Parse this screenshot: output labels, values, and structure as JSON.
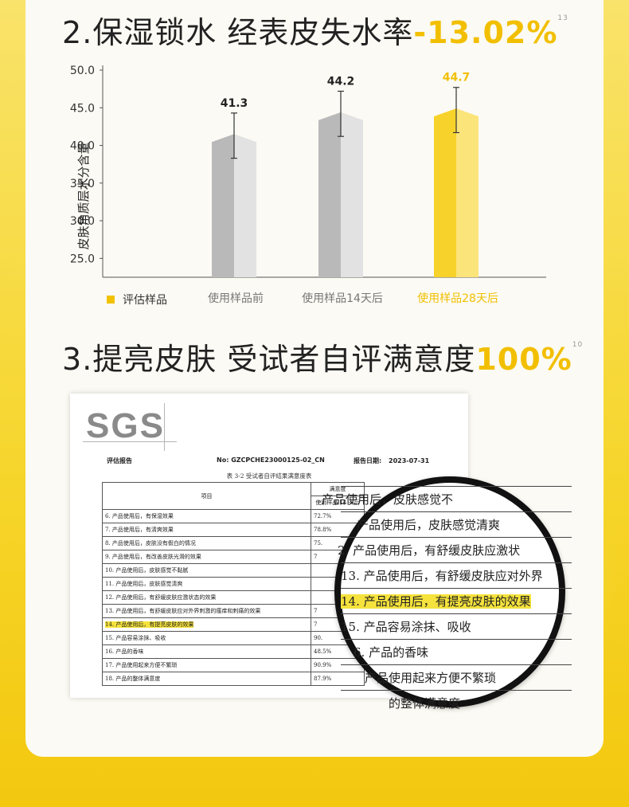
{
  "section2": {
    "number": "2",
    "title": ".保湿锁水 经表皮失水率",
    "highlight": "-13.02%",
    "ref": "13"
  },
  "section3": {
    "number": "3",
    "title": ".提亮皮肤 受试者自评满意度",
    "highlight": "100%",
    "ref": "10"
  },
  "colors": {
    "accent": "#f2bf00",
    "gray_bar": "#b9b9b9",
    "gray_bar_light": "#e2e2e2",
    "yellow_bar": "#f7d22a",
    "yellow_bar_light": "#fbe47a"
  },
  "chart_data": {
    "type": "bar",
    "ylabel": "皮肤角质层水分含量",
    "yticks": [
      "50.0",
      "45.0",
      "40.0",
      "35.0",
      "30.0",
      "25.0"
    ],
    "ylim": [
      22.5,
      50.0
    ],
    "legend": {
      "label": "评估样品",
      "position": "bottom-left"
    },
    "categories": [
      "使用样品前",
      "使用样品14天后",
      "使用样品28天后"
    ],
    "values": [
      41.3,
      44.2,
      44.7
    ],
    "value_labels": [
      "41.3",
      "44.2",
      "44.7"
    ],
    "error": [
      3.0,
      3.0,
      3.0
    ],
    "highlight_index": 2,
    "grid": false
  },
  "report": {
    "logo": "SGS",
    "label_report": "评估报告",
    "report_no_label": "No:",
    "report_no": "GZCPCHE23000125-02_CN",
    "date_label": "报告日期:",
    "date": "2023-07-31",
    "table_caption": "表 3-2 受试者自评结果满意度表",
    "col_item": "项目",
    "col_satisfaction": "满意度",
    "col_sub": "使用样品 14 天后",
    "rows": [
      {
        "item": "6. 产品使用后，有保湿效果",
        "value": "72.7%"
      },
      {
        "item": "7. 产品使用后，有清爽效果",
        "value": "78.8%"
      },
      {
        "item": "8. 产品使用后，皮肤没有假白的情况",
        "value": "75."
      },
      {
        "item": "9. 产品使用后，有改善皮肤光滑的效果",
        "value": "7"
      },
      {
        "item": "10. 产品使用后，皮肤感觉不黏腻",
        "value": ""
      },
      {
        "item": "11. 产品使用后，皮肤感觉清爽",
        "value": ""
      },
      {
        "item": "12. 产品使用后，有舒缓皮肤应激状态的效果",
        "value": ""
      },
      {
        "item": "13. 产品使用后，有舒缓皮肤应对外界刺激的瘙痒和刺痛的效果",
        "value": "7"
      },
      {
        "item": "14. 产品使用后，有提亮皮肤的效果",
        "value": "7"
      },
      {
        "item": "15. 产品容易涂抹、吸收",
        "value": "90."
      },
      {
        "item": "16. 产品的香味",
        "value": "48.5%"
      },
      {
        "item": "17. 产品使用起来方便不繁琐",
        "value": "90.9%"
      },
      {
        "item": "18. 产品的整体满意度",
        "value": "87.9%"
      }
    ]
  },
  "magnifier": {
    "rows": [
      "产品使用后，皮肤感觉不",
      "产品使用后，皮肤感觉清爽",
      "2. 产品使用后，有舒缓皮肤应激状",
      "13. 产品使用后，有舒缓皮肤应对外界",
      "14. 产品使用后，有提亮皮肤的效果",
      "15. 产品容易涂抹、吸收",
      "6. 产品的香味",
      "产品使用起来方便不繁琐",
      "的整体满意度"
    ]
  }
}
